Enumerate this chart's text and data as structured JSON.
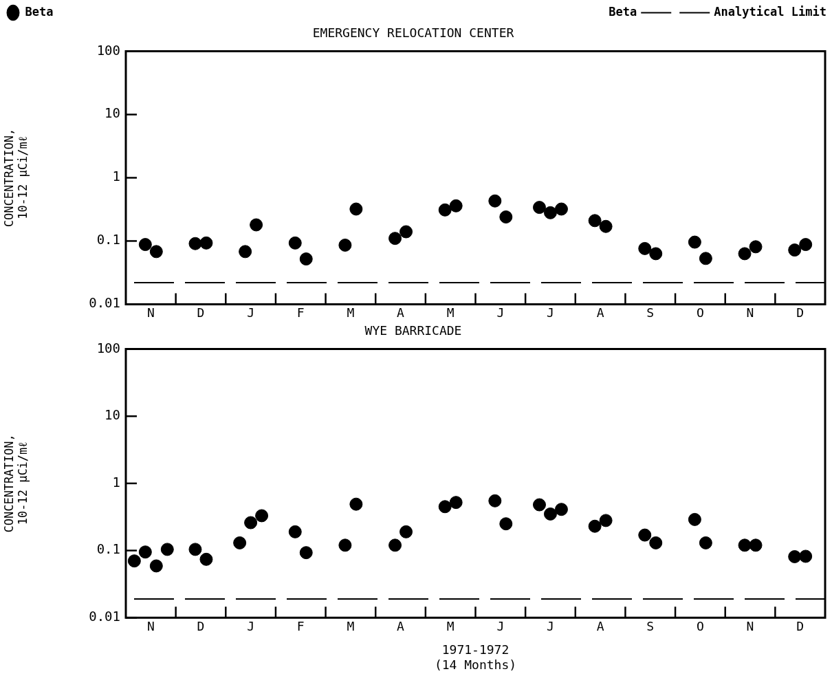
{
  "chart_data": [
    {
      "type": "scatter",
      "title": "EMERGENCY RELOCATION CENTER",
      "ylabel": "CONCENTRATION,\n10-12 µCi/mℓ",
      "log": "y",
      "grid": false,
      "marker": "circle",
      "legend": "top left",
      "categories": [
        "N",
        "D",
        "J",
        "F",
        "M",
        "A",
        "M",
        "J",
        "J",
        "A",
        "S",
        "O",
        "N",
        "D"
      ],
      "ylim": [
        0.01,
        100
      ],
      "yticks": [
        0.01,
        0.1,
        1,
        10,
        100
      ],
      "ref_lines": [
        {
          "axis": "y",
          "value": 0.022,
          "label": "Beta Analytical Limit",
          "color": "#000000",
          "line_style": "dashed"
        }
      ],
      "series": [
        {
          "name": "Beta",
          "color": "#000000",
          "values": [
            0.088,
            0.091,
            0.068,
            0.093,
            0.086,
            0.11,
            0.31,
            0.43,
            0.34,
            0.21,
            0.076,
            0.096,
            0.063,
            0.072
          ]
        },
        {
          "color": "#000000",
          "values": [
            0.068,
            0.093,
            0.18,
            0.052,
            0.32,
            0.14,
            0.36,
            0.24,
            0.28,
            0.17,
            0.063,
            0.053,
            0.081,
            0.088
          ]
        },
        {
          "color": "#000000",
          "values": [
            null,
            null,
            null,
            null,
            null,
            null,
            null,
            null,
            0.32,
            null,
            null,
            null,
            null,
            null
          ]
        }
      ]
    },
    {
      "type": "scatter",
      "title": "WYE BARRICADE",
      "ylabel": "CONCENTRATION,\n10-12 µCi/mℓ",
      "xlabel": "1971-1972\n(14 Months)",
      "log": "y",
      "grid": false,
      "marker": "circle",
      "categories": [
        "N",
        "D",
        "J",
        "F",
        "M",
        "A",
        "M",
        "J",
        "J",
        "A",
        "S",
        "O",
        "N",
        "D"
      ],
      "ylim": [
        0.01,
        100
      ],
      "yticks": [
        0.01,
        0.1,
        1,
        10,
        100
      ],
      "ref_lines": [
        {
          "axis": "y",
          "value": 0.019,
          "color": "#000000",
          "line_style": "dashed"
        }
      ],
      "series": [
        {
          "color": "#000000",
          "values": [
            0.07,
            0.104,
            0.13,
            0.19,
            0.12,
            0.12,
            0.45,
            0.55,
            0.48,
            0.23,
            0.17,
            0.29,
            0.12,
            0.081
          ]
        },
        {
          "color": "#000000",
          "values": [
            0.095,
            0.074,
            0.26,
            0.093,
            0.49,
            0.19,
            0.52,
            0.25,
            0.35,
            0.28,
            0.13,
            0.13,
            0.12,
            0.082
          ]
        },
        {
          "color": "#000000",
          "values": [
            0.059,
            null,
            0.33,
            null,
            null,
            null,
            null,
            null,
            0.41,
            null,
            null,
            null,
            null,
            null
          ]
        },
        {
          "color": "#000000",
          "values": [
            0.104,
            null,
            null,
            null,
            null,
            null,
            null,
            null,
            null,
            null,
            null,
            null,
            null,
            null
          ]
        }
      ]
    }
  ]
}
